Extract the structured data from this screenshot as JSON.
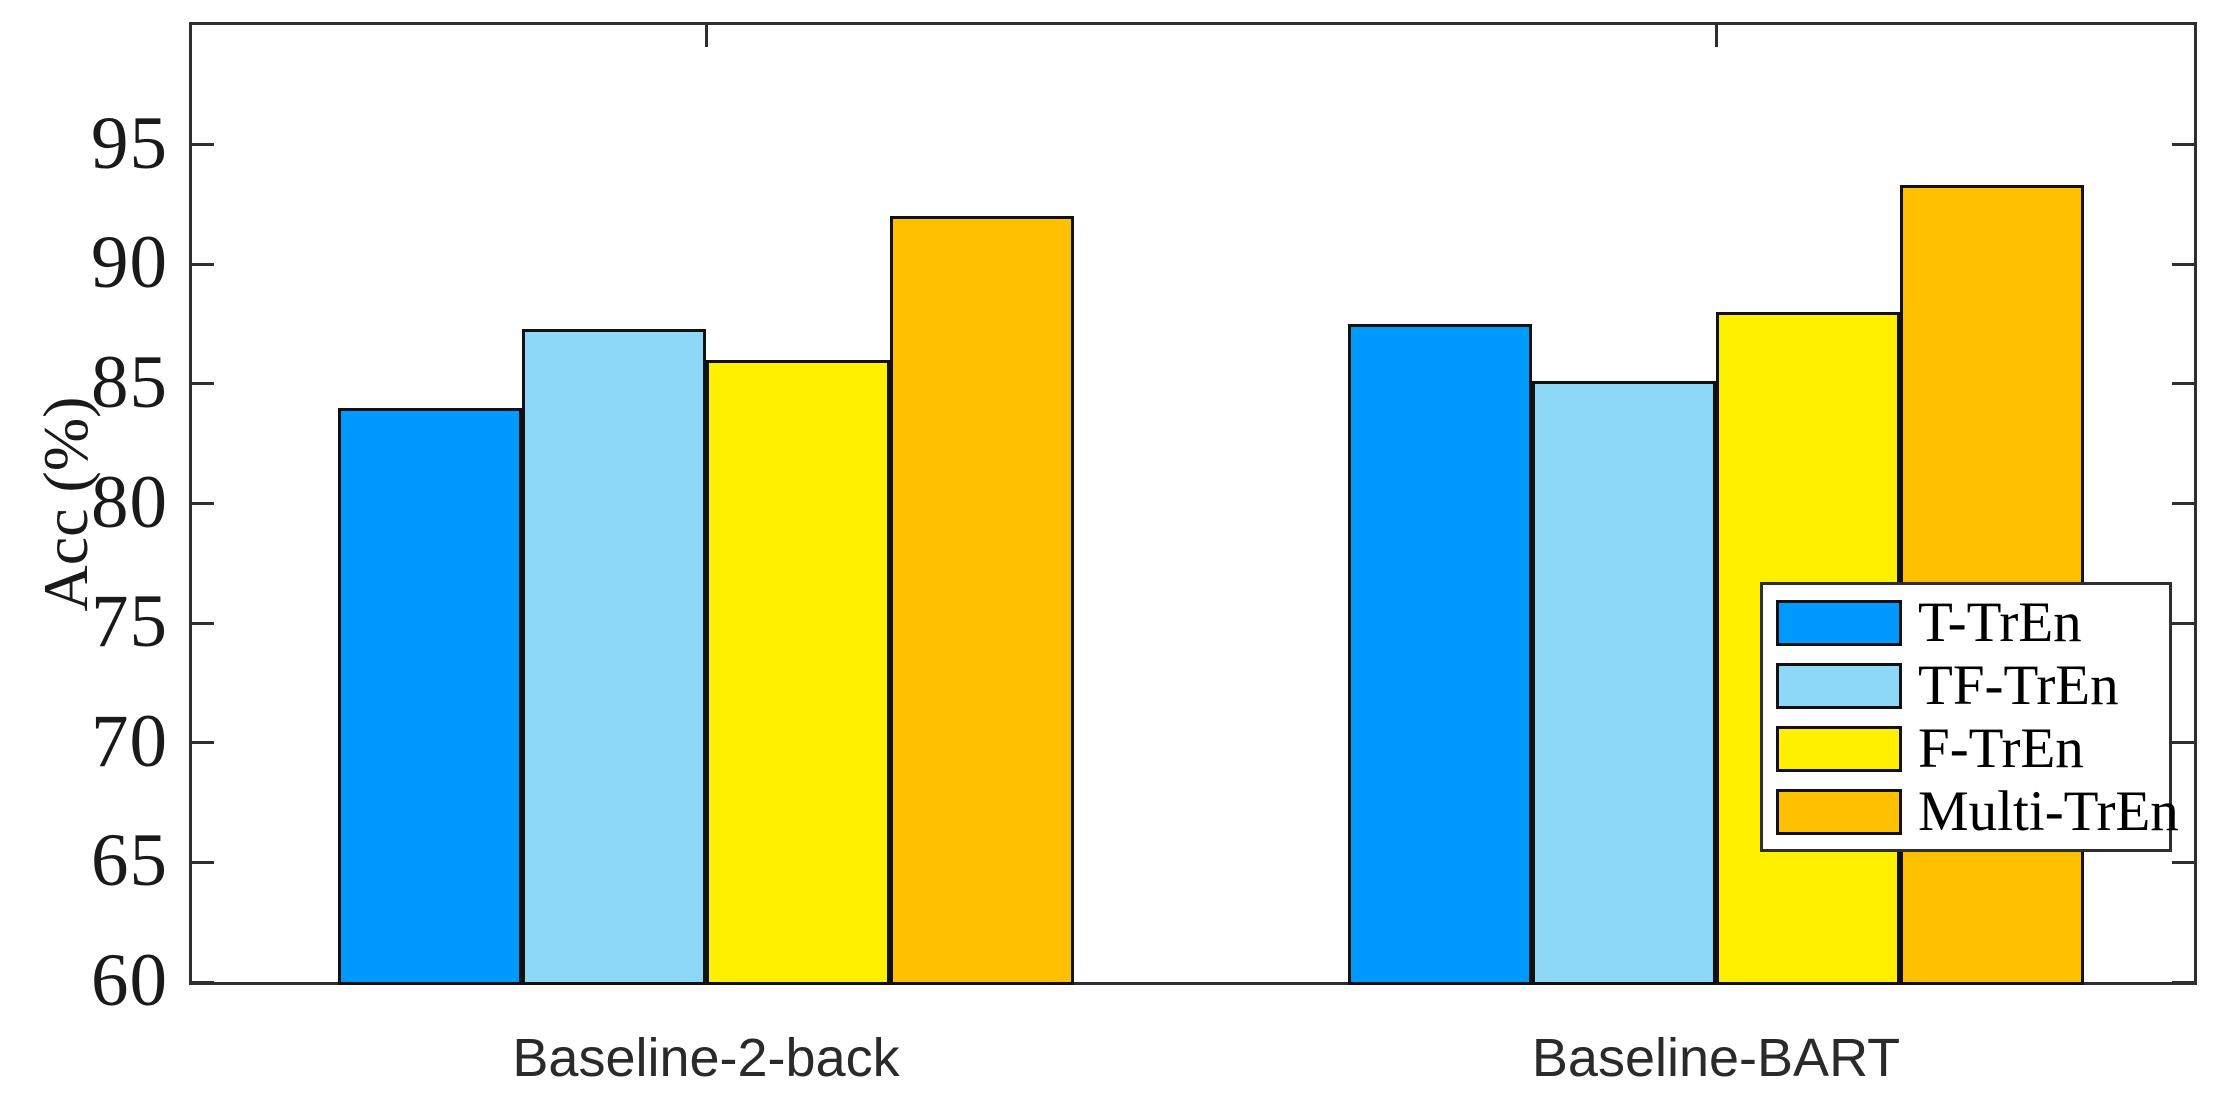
{
  "figure": {
    "background": "#ffffff",
    "axis_color": "#2e2e2e",
    "bar_edge_color": "#111111"
  },
  "chart_data": {
    "type": "bar",
    "title": "",
    "xlabel": "",
    "ylabel": "Acc (%)",
    "categories": [
      "Baseline-2-back",
      "Baseline-BART"
    ],
    "series": [
      {
        "name": "T-TrEn",
        "color": "#0099fe",
        "values": [
          84.0,
          87.5
        ]
      },
      {
        "name": "TF-TrEn",
        "color": "#8dd7f7",
        "values": [
          87.3,
          85.1
        ]
      },
      {
        "name": "F-TrEn",
        "color": "#fff000",
        "values": [
          86.0,
          88.0
        ]
      },
      {
        "name": "Multi-TrEn",
        "color": "#ffc000",
        "values": [
          92.0,
          93.3
        ]
      }
    ],
    "ylim": [
      60,
      100
    ],
    "yticks": [
      "60",
      "65",
      "70",
      "75",
      "80",
      "85",
      "90",
      "95"
    ],
    "grid": false,
    "legend_position": "middle-right",
    "box": "on",
    "tick_direction": "in"
  }
}
